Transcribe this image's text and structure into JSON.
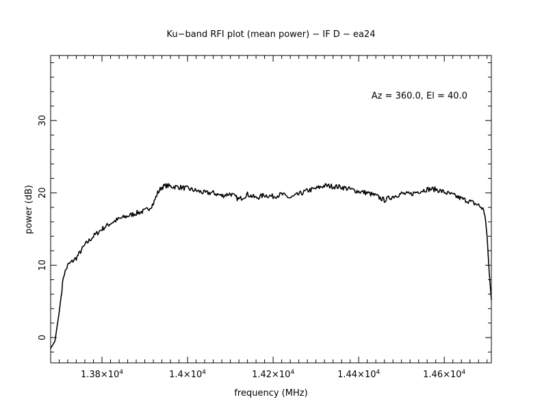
{
  "chart_data": {
    "type": "line",
    "title": "Ku−band RFI plot (mean power) − IF D − ea24",
    "xlabel": "frequency (MHz)",
    "ylabel": "power (dB)",
    "annotation": "Az = 360.0, El = 40.0",
    "xlim": [
      13680,
      14710
    ],
    "ylim": [
      -3.5,
      39
    ],
    "x_ticks": [
      {
        "value": 13800,
        "mantissa": "1.38×10",
        "exponent": "4"
      },
      {
        "value": 14000,
        "mantissa": "1.4×10",
        "exponent": "4"
      },
      {
        "value": 14200,
        "mantissa": "1.42×10",
        "exponent": "4"
      },
      {
        "value": 14400,
        "mantissa": "1.44×10",
        "exponent": "4"
      },
      {
        "value": 14600,
        "mantissa": "1.46×10",
        "exponent": "4"
      }
    ],
    "y_ticks": [
      {
        "value": 0,
        "label": "0"
      },
      {
        "value": 10,
        "label": "10"
      },
      {
        "value": 20,
        "label": "20"
      },
      {
        "value": 30,
        "label": "30"
      }
    ],
    "grid": false,
    "line_color": "#000000",
    "series": [
      {
        "x": [
          13680,
          13690,
          13700,
          13710,
          13720,
          13730,
          13740,
          13760,
          13780,
          13800,
          13820,
          13840,
          13860,
          13880,
          13900,
          13910,
          13920,
          13930,
          13940,
          13950,
          13960,
          13980,
          14000,
          14020,
          14040,
          14060,
          14080,
          14100,
          14120,
          14140,
          14160,
          14180,
          14200,
          14220,
          14240,
          14260,
          14280,
          14300,
          14320,
          14340,
          14360,
          14380,
          14400,
          14420,
          14440,
          14460,
          14480,
          14500,
          14520,
          14540,
          14560,
          14580,
          14600,
          14620,
          14640,
          14660,
          14680,
          14690,
          14695,
          14700,
          14705,
          14710
        ],
        "y": [
          -1.5,
          -0.5,
          3.5,
          8.5,
          10.0,
          10.5,
          11.0,
          12.8,
          14.0,
          15.0,
          15.8,
          16.4,
          16.8,
          17.2,
          17.5,
          17.9,
          18.5,
          20.0,
          20.8,
          21.0,
          20.9,
          20.8,
          20.6,
          20.3,
          20.0,
          20.0,
          19.6,
          19.9,
          19.1,
          19.8,
          19.3,
          19.7,
          19.5,
          19.8,
          19.3,
          19.8,
          20.3,
          20.6,
          21.0,
          20.9,
          20.8,
          20.5,
          20.2,
          20.0,
          19.6,
          19.0,
          19.5,
          19.9,
          19.8,
          20.2,
          20.5,
          20.5,
          20.1,
          19.7,
          19.2,
          18.8,
          18.3,
          17.8,
          17.0,
          14.0,
          9.0,
          5.2
        ]
      }
    ]
  }
}
